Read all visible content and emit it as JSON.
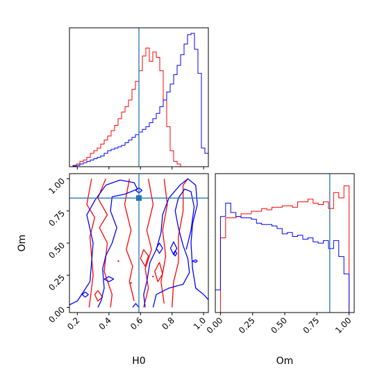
{
  "chart_data": [
    {
      "type": "histogram",
      "panel": "top-left",
      "parameter": "H0",
      "xlim": [
        0.15,
        1.03
      ],
      "x_ticks": [
        0.2,
        0.4,
        0.6,
        0.8,
        1.0
      ],
      "truth": 0.59,
      "bin_edges": [
        0.15,
        0.172,
        0.194,
        0.216,
        0.238,
        0.26,
        0.282,
        0.304,
        0.326,
        0.348,
        0.37,
        0.392,
        0.414,
        0.436,
        0.458,
        0.48,
        0.502,
        0.524,
        0.546,
        0.568,
        0.59,
        0.612,
        0.634,
        0.656,
        0.678,
        0.7,
        0.722,
        0.744,
        0.766,
        0.788,
        0.81,
        0.832,
        0.854,
        0.876,
        0.898,
        0.92,
        0.942,
        0.964,
        0.986,
        1.008,
        1.03
      ],
      "series": [
        {
          "color": "#ff0000",
          "values": [
            0.0,
            0.01,
            0.02,
            0.04,
            0.05,
            0.07,
            0.1,
            0.12,
            0.14,
            0.17,
            0.2,
            0.23,
            0.27,
            0.31,
            0.36,
            0.41,
            0.45,
            0.5,
            0.58,
            0.64,
            0.72,
            0.83,
            0.89,
            0.79,
            0.86,
            0.82,
            0.72,
            0.5,
            0.3,
            0.12,
            0.04,
            0.02,
            0.0,
            0.0,
            0.0,
            0.0,
            0.0,
            0.0,
            0.0,
            0.0
          ]
        },
        {
          "color": "#0000ff",
          "values": [
            0.0,
            0.005,
            0.01,
            0.02,
            0.03,
            0.04,
            0.05,
            0.06,
            0.07,
            0.08,
            0.1,
            0.12,
            0.13,
            0.14,
            0.15,
            0.16,
            0.18,
            0.2,
            0.22,
            0.24,
            0.26,
            0.28,
            0.3,
            0.33,
            0.36,
            0.4,
            0.45,
            0.5,
            0.56,
            0.62,
            0.69,
            0.76,
            0.84,
            0.92,
            0.99,
            1.0,
            0.88,
            0.7,
            0.14,
            0.1
          ]
        }
      ]
    },
    {
      "type": "contour",
      "panel": "bottom-left",
      "xlabel": "H0",
      "ylabel": "Om",
      "xlim": [
        0.15,
        1.03
      ],
      "ylim": [
        -0.04,
        1.04
      ],
      "x_ticks": [
        0.2,
        0.4,
        0.6,
        0.8,
        1.0
      ],
      "y_ticks": [
        0.0,
        0.25,
        0.5,
        0.75,
        1.0
      ],
      "truth": {
        "x": 0.59,
        "y": 0.85
      },
      "series": [
        {
          "color": "#ff0000",
          "contours": [
            [
              [
                0.275,
                0.0
              ],
              [
                0.3,
                0.25
              ],
              [
                0.28,
                0.55
              ],
              [
                0.31,
                0.7
              ],
              [
                0.26,
                0.8
              ],
              [
                0.29,
                1.0
              ]
            ],
            [
              [
                0.41,
                0.0
              ],
              [
                0.42,
                0.1
              ],
              [
                0.37,
                0.28
              ],
              [
                0.39,
                0.5
              ],
              [
                0.34,
                0.62
              ],
              [
                0.39,
                0.72
              ],
              [
                0.33,
                0.85
              ],
              [
                0.38,
                1.0
              ]
            ],
            [
              [
                0.56,
                0.05
              ],
              [
                0.53,
                0.2
              ],
              [
                0.55,
                0.32
              ],
              [
                0.51,
                0.45
              ],
              [
                0.54,
                0.6
              ],
              [
                0.5,
                0.8
              ],
              [
                0.53,
                1.0
              ]
            ],
            [
              [
                0.62,
                0.0
              ],
              [
                0.65,
                0.15
              ],
              [
                0.63,
                0.3
              ],
              [
                0.67,
                0.45
              ],
              [
                0.64,
                0.6
              ],
              [
                0.68,
                0.8
              ],
              [
                0.65,
                1.0
              ]
            ],
            [
              [
                0.75,
                0.03
              ],
              [
                0.73,
                0.2
              ],
              [
                0.76,
                0.4
              ],
              [
                0.74,
                0.6
              ],
              [
                0.77,
                0.8
              ],
              [
                0.75,
                1.0
              ]
            ],
            [
              [
                0.8,
                0.0
              ],
              [
                0.81,
                0.2
              ],
              [
                0.84,
                0.35
              ],
              [
                0.84,
                0.55
              ],
              [
                0.87,
                0.75
              ],
              [
                0.87,
                0.95
              ],
              [
                0.9,
                1.0
              ]
            ],
            [
              [
                0.72,
                0.35
              ],
              [
                0.69,
                0.28
              ],
              [
                0.71,
                0.2
              ],
              [
                0.74,
                0.26
              ],
              [
                0.72,
                0.35
              ]
            ],
            [
              [
                0.62,
                0.45
              ],
              [
                0.6,
                0.38
              ],
              [
                0.63,
                0.32
              ],
              [
                0.65,
                0.4
              ],
              [
                0.62,
                0.45
              ]
            ],
            [
              [
                0.31,
                0.1
              ],
              [
                0.33,
                0.05
              ],
              [
                0.36,
                0.08
              ],
              [
                0.33,
                0.13
              ],
              [
                0.31,
                0.1
              ]
            ]
          ],
          "dots": [
            [
              0.46,
              0.36
            ],
            [
              0.54,
              0.19
            ],
            [
              0.68,
              0.24
            ]
          ]
        },
        {
          "color": "#0000ff",
          "contours": [
            [
              [
                0.15,
                0.02
              ],
              [
                0.2,
                0.05
              ],
              [
                0.28,
                0.2
              ],
              [
                0.3,
                0.5
              ],
              [
                0.26,
                0.72
              ],
              [
                0.31,
                0.83
              ],
              [
                0.38,
                0.95
              ],
              [
                0.47,
                0.99
              ],
              [
                0.56,
                0.97
              ],
              [
                0.58,
                0.92
              ],
              [
                0.5,
                0.88
              ],
              [
                0.42,
                0.86
              ],
              [
                0.41,
                0.75
              ],
              [
                0.45,
                0.62
              ],
              [
                0.42,
                0.5
              ],
              [
                0.38,
                0.4
              ],
              [
                0.36,
                0.3
              ],
              [
                0.37,
                0.15
              ],
              [
                0.35,
                0.05
              ],
              [
                0.33,
                0.0
              ]
            ],
            [
              [
                0.63,
                0.0
              ],
              [
                0.62,
                0.1
              ],
              [
                0.64,
                0.2
              ],
              [
                0.66,
                0.35
              ],
              [
                0.7,
                0.45
              ],
              [
                0.73,
                0.58
              ],
              [
                0.74,
                0.72
              ],
              [
                0.78,
                0.85
              ],
              [
                0.85,
                0.95
              ],
              [
                0.9,
                1.0
              ],
              [
                0.95,
                0.95
              ],
              [
                0.96,
                0.8
              ],
              [
                0.93,
                0.65
              ],
              [
                0.92,
                0.5
              ],
              [
                0.93,
                0.3
              ],
              [
                0.95,
                0.15
              ],
              [
                1.0,
                0.1
              ],
              [
                1.03,
                0.06
              ]
            ],
            [
              [
                0.68,
                0.0
              ],
              [
                0.7,
                0.1
              ],
              [
                0.78,
                0.15
              ],
              [
                0.87,
                0.18
              ],
              [
                0.91,
                0.27
              ],
              [
                0.9,
                0.38
              ],
              [
                0.87,
                0.48
              ],
              [
                0.84,
                0.62
              ],
              [
                0.82,
                0.75
              ],
              [
                0.84,
                0.85
              ],
              [
                0.88,
                0.92
              ],
              [
                0.92,
                0.9
              ],
              [
                0.94,
                0.78
              ],
              [
                0.92,
                0.6
              ],
              [
                0.89,
                0.45
              ]
            ],
            [
              [
                0.25,
                0.12
              ],
              [
                0.23,
                0.1
              ],
              [
                0.25,
                0.08
              ],
              [
                0.27,
                0.1
              ],
              [
                0.25,
                0.12
              ]
            ],
            [
              [
                0.37,
                0.22
              ],
              [
                0.4,
                0.24
              ],
              [
                0.43,
                0.22
              ],
              [
                0.4,
                0.2
              ],
              [
                0.37,
                0.22
              ]
            ],
            [
              [
                0.7,
                0.46
              ],
              [
                0.72,
                0.5
              ],
              [
                0.74,
                0.46
              ],
              [
                0.72,
                0.42
              ],
              [
                0.7,
                0.46
              ]
            ],
            [
              [
                0.79,
                0.46
              ],
              [
                0.81,
                0.51
              ],
              [
                0.83,
                0.46
              ],
              [
                0.81,
                0.41
              ],
              [
                0.79,
                0.46
              ]
            ],
            [
              [
                0.81,
                0.42
              ],
              [
                0.82,
                0.44
              ],
              [
                0.83,
                0.42
              ],
              [
                0.82,
                0.4
              ],
              [
                0.81,
                0.42
              ]
            ],
            [
              [
                0.57,
                0.91
              ],
              [
                0.59,
                0.93
              ],
              [
                0.61,
                0.91
              ],
              [
                0.59,
                0.89
              ],
              [
                0.57,
                0.91
              ]
            ],
            [
              [
                0.93,
                0.36
              ],
              [
                0.95,
                0.37
              ],
              [
                0.96,
                0.36
              ],
              [
                0.95,
                0.35
              ],
              [
                0.93,
                0.36
              ]
            ],
            [
              [
                0.55,
                0.0
              ],
              [
                0.57,
                0.03
              ],
              [
                0.59,
                0.0
              ]
            ]
          ]
        }
      ]
    },
    {
      "type": "histogram",
      "panel": "bottom-right",
      "parameter": "Om",
      "xlim": [
        -0.04,
        1.04
      ],
      "x_ticks": [
        0.0,
        0.25,
        0.5,
        0.75,
        1.0
      ],
      "truth": 0.85,
      "bin_edges": [
        -0.04,
        0.0,
        0.04,
        0.08,
        0.12,
        0.16,
        0.2,
        0.24,
        0.28,
        0.32,
        0.36,
        0.4,
        0.44,
        0.48,
        0.52,
        0.56,
        0.6,
        0.64,
        0.68,
        0.72,
        0.76,
        0.8,
        0.84,
        0.88,
        0.92,
        0.96,
        1.0
      ],
      "series": [
        {
          "color": "#ff0000",
          "values": [
            0.0,
            0.56,
            0.71,
            0.71,
            0.72,
            0.74,
            0.74,
            0.76,
            0.76,
            0.78,
            0.77,
            0.79,
            0.79,
            0.8,
            0.8,
            0.79,
            0.83,
            0.83,
            0.85,
            0.82,
            0.81,
            0.83,
            0.78,
            0.9,
            0.86,
            0.95
          ]
        },
        {
          "color": "#0000ff",
          "values": [
            0.17,
            0.72,
            0.82,
            0.75,
            0.72,
            0.71,
            0.71,
            0.7,
            0.67,
            0.66,
            0.66,
            0.65,
            0.63,
            0.59,
            0.6,
            0.57,
            0.58,
            0.55,
            0.56,
            0.53,
            0.52,
            0.54,
            0.48,
            0.54,
            0.42,
            0.29
          ]
        }
      ]
    }
  ]
}
